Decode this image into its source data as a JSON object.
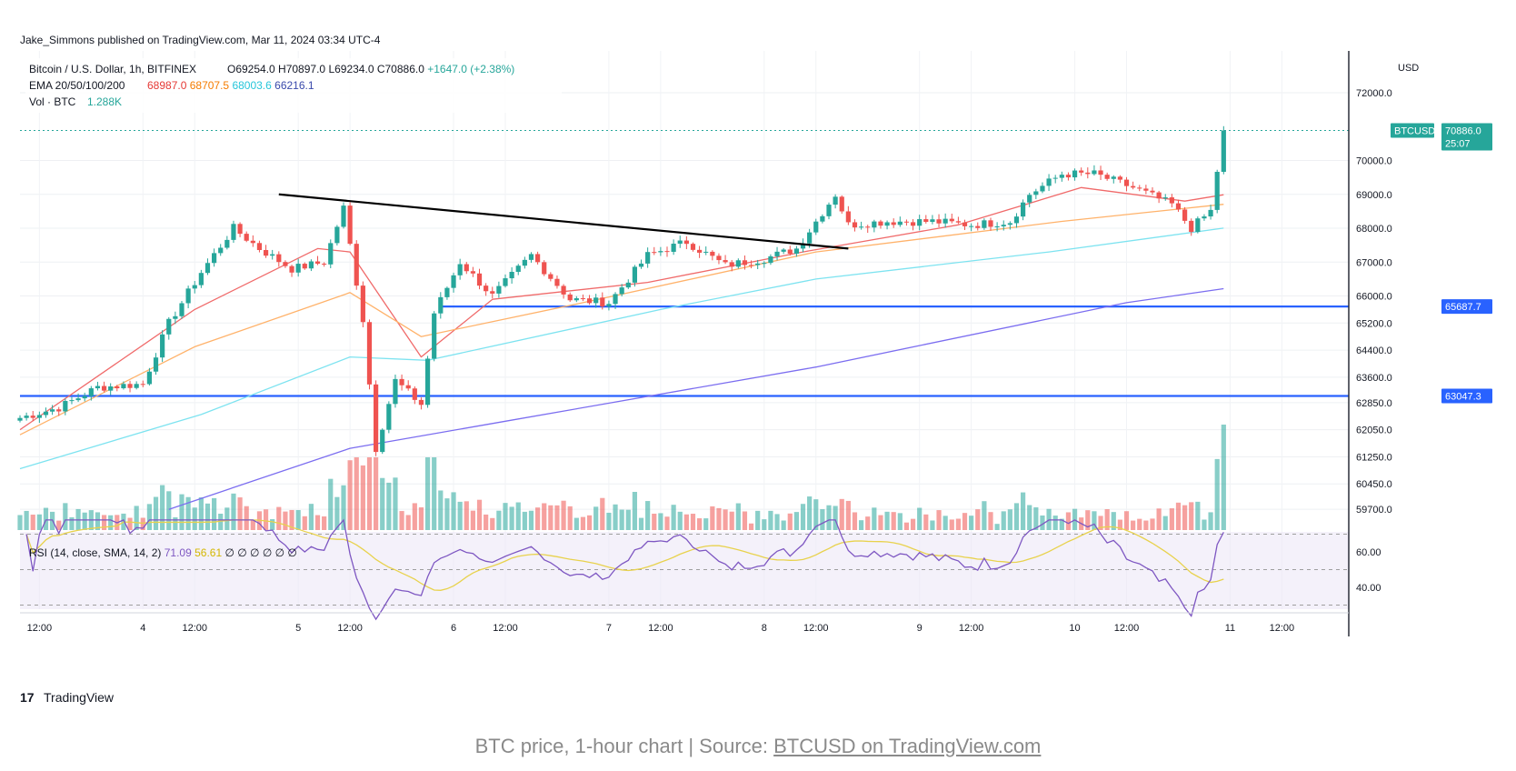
{
  "header": {
    "publisher": "Jake_Simmons published on TradingView.com, Mar 11, 2024 03:34 UTC-4"
  },
  "legend": {
    "symbol": "Bitcoin / U.S. Dollar, 1h, BITFINEX",
    "ohlc": {
      "o": "O69254.0",
      "h": "H70897.0",
      "l": "L69234.0",
      "c": "C70886.0",
      "chg": "+1647.0 (+2.38%)"
    },
    "ema_label": "EMA 20/50/100/200",
    "ema_values": [
      "68987.0",
      "68707.5",
      "68003.6",
      "66216.1"
    ],
    "vol_label": "Vol · BTC",
    "vol_value": "1.288K",
    "rsi_label": "RSI (14, close, SMA, 14, 2)",
    "rsi_value": "71.09",
    "rsi_sma_value": "56.61",
    "rsi_empty": [
      "∅",
      "∅",
      "∅",
      "∅",
      "∅",
      "∅"
    ]
  },
  "price_axis": {
    "currency": "USD",
    "ticks": [
      "72000.0",
      "70000.0",
      "69000.0",
      "68000.0",
      "67000.0",
      "66000.0",
      "65200.0",
      "64400.0",
      "63600.0",
      "62850.0",
      "62050.0",
      "61250.0",
      "60450.0",
      "59700.0"
    ],
    "rsi_ticks": [
      "60.00",
      "40.00"
    ]
  },
  "time_axis": {
    "labels": [
      "12:00",
      "4",
      "12:00",
      "5",
      "12:00",
      "6",
      "12:00",
      "7",
      "12:00",
      "8",
      "12:00",
      "9",
      "12:00",
      "10",
      "12:00",
      "11",
      "12:00"
    ]
  },
  "badges": {
    "symbol": "BTCUSD",
    "last_price": "70886.0",
    "countdown": "25:07",
    "support1": "65687.7",
    "support2": "63047.3"
  },
  "brand": "TradingView",
  "caption": {
    "prefix": "BTC price, 1-hour chart | Source: ",
    "link": "BTCUSD on TradingView.com"
  },
  "colors": {
    "up": "#26a69a",
    "down": "#ef5350",
    "ema20": "#f06a6a",
    "ema50": "#ffb26a",
    "ema100": "#7de3f0",
    "ema200": "#7b6df0",
    "level": "#2962ff",
    "trendline": "#000000",
    "rsi": "#7e57c2",
    "rsi_sma": "#e8d24d",
    "rsi_band": "#ede7f6",
    "last_badge": "#26a69a"
  },
  "chart_data": {
    "type": "candlestick",
    "symbol": "BTCUSD",
    "timeframe": "1h",
    "x_range": [
      "Mar 3 09:00",
      "Mar 11 03:00"
    ],
    "y_range": [
      59700,
      72500
    ],
    "grid": true,
    "price_path": [
      {
        "x": "Mar 3 09:00",
        "y": 62400
      },
      {
        "x": "Mar 3 15:00",
        "y": 62700
      },
      {
        "x": "Mar 3 21:00",
        "y": 63300
      },
      {
        "x": "Mar 4 04:00",
        "y": 63400
      },
      {
        "x": "Mar 4 08:00",
        "y": 65200
      },
      {
        "x": "Mar 4 13:00",
        "y": 66700
      },
      {
        "x": "Mar 4 18:00",
        "y": 68000
      },
      {
        "x": "Mar 4 22:00",
        "y": 67400
      },
      {
        "x": "Mar 5 03:00",
        "y": 66800
      },
      {
        "x": "Mar 5 08:00",
        "y": 67000
      },
      {
        "x": "Mar 5 11:00",
        "y": 68600
      },
      {
        "x": "Mar 5 14:00",
        "y": 65300
      },
      {
        "x": "Mar 5 16:00",
        "y": 61500
      },
      {
        "x": "Mar 5 19:00",
        "y": 63500
      },
      {
        "x": "Mar 5 23:00",
        "y": 62800
      },
      {
        "x": "Mar 6 01:00",
        "y": 65500
      },
      {
        "x": "Mar 6 05:00",
        "y": 67000
      },
      {
        "x": "Mar 6 10:00",
        "y": 66000
      },
      {
        "x": "Mar 6 16:00",
        "y": 67200
      },
      {
        "x": "Mar 6 22:00",
        "y": 65900
      },
      {
        "x": "Mar 7 04:00",
        "y": 65800
      },
      {
        "x": "Mar 7 10:00",
        "y": 67200
      },
      {
        "x": "Mar 7 16:00",
        "y": 67600
      },
      {
        "x": "Mar 7 22:00",
        "y": 66900
      },
      {
        "x": "Mar 8 04:00",
        "y": 67100
      },
      {
        "x": "Mar 8 09:00",
        "y": 67400
      },
      {
        "x": "Mar 8 12:00",
        "y": 68200
      },
      {
        "x": "Mar 8 15:00",
        "y": 69000
      },
      {
        "x": "Mar 8 17:00",
        "y": 68100
      },
      {
        "x": "Mar 8 23:00",
        "y": 68200
      },
      {
        "x": "Mar 9 06:00",
        "y": 68200
      },
      {
        "x": "Mar 9 12:00",
        "y": 68100
      },
      {
        "x": "Mar 9 18:00",
        "y": 68200
      },
      {
        "x": "Mar 9 21:00",
        "y": 69000
      },
      {
        "x": "Mar 10 02:00",
        "y": 69600
      },
      {
        "x": "Mar 10 07:00",
        "y": 69600
      },
      {
        "x": "Mar 10 13:00",
        "y": 69200
      },
      {
        "x": "Mar 10 19:00",
        "y": 68700
      },
      {
        "x": "Mar 10 22:00",
        "y": 68000
      },
      {
        "x": "Mar 11 01:00",
        "y": 68500
      },
      {
        "x": "Mar 11 03:00",
        "y": 70886
      }
    ],
    "ema_series": [
      {
        "name": "EMA 20",
        "points": [
          {
            "x": "Mar 3 09:00",
            "y": 62050
          },
          {
            "x": "Mar 4 12:00",
            "y": 65600
          },
          {
            "x": "Mar 5 07:00",
            "y": 67400
          },
          {
            "x": "Mar 5 12:00",
            "y": 67300
          },
          {
            "x": "Mar 5 23:00",
            "y": 64200
          },
          {
            "x": "Mar 6 10:00",
            "y": 65900
          },
          {
            "x": "Mar 7 10:00",
            "y": 66400
          },
          {
            "x": "Mar 8 10:00",
            "y": 67300
          },
          {
            "x": "Mar 9 10:00",
            "y": 68100
          },
          {
            "x": "Mar 10 05:00",
            "y": 69200
          },
          {
            "x": "Mar 10 21:00",
            "y": 68800
          },
          {
            "x": "Mar 11 03:00",
            "y": 68987
          }
        ]
      },
      {
        "name": "EMA 50",
        "points": [
          {
            "x": "Mar 3 09:00",
            "y": 61900
          },
          {
            "x": "Mar 4 12:00",
            "y": 64500
          },
          {
            "x": "Mar 5 12:00",
            "y": 66100
          },
          {
            "x": "Mar 5 23:00",
            "y": 64800
          },
          {
            "x": "Mar 7 00:00",
            "y": 65800
          },
          {
            "x": "Mar 8 12:00",
            "y": 67300
          },
          {
            "x": "Mar 10 02:00",
            "y": 68200
          },
          {
            "x": "Mar 11 03:00",
            "y": 68707
          }
        ]
      },
      {
        "name": "EMA 100",
        "points": [
          {
            "x": "Mar 3 09:00",
            "y": 60900
          },
          {
            "x": "Mar 4 13:00",
            "y": 62500
          },
          {
            "x": "Mar 5 12:00",
            "y": 64200
          },
          {
            "x": "Mar 6 00:00",
            "y": 64100
          },
          {
            "x": "Mar 7 12:00",
            "y": 65600
          },
          {
            "x": "Mar 8 12:00",
            "y": 66500
          },
          {
            "x": "Mar 10 00:00",
            "y": 67300
          },
          {
            "x": "Mar 11 03:00",
            "y": 68003
          }
        ]
      },
      {
        "name": "EMA 200",
        "points": [
          {
            "x": "Mar 4 08:00",
            "y": 59700
          },
          {
            "x": "Mar 5 12:00",
            "y": 61500
          },
          {
            "x": "Mar 6 12:00",
            "y": 62300
          },
          {
            "x": "Mar 8 12:00",
            "y": 63900
          },
          {
            "x": "Mar 10 12:00",
            "y": 65800
          },
          {
            "x": "Mar 11 03:00",
            "y": 66216
          }
        ]
      }
    ],
    "horizontal_levels": [
      {
        "label": "65687.7",
        "y": 65687.7
      },
      {
        "label": "63047.3",
        "y": 63047.3
      }
    ],
    "trendline": [
      {
        "x": "Mar 5 01:00",
        "y": 69000
      },
      {
        "x": "Mar 8 17:00",
        "y": 67400
      }
    ],
    "last_price": 70886.0,
    "rsi": {
      "length": 14,
      "last": 71.09,
      "sma": 56.61,
      "axis_ticks": [
        60,
        40
      ]
    }
  }
}
